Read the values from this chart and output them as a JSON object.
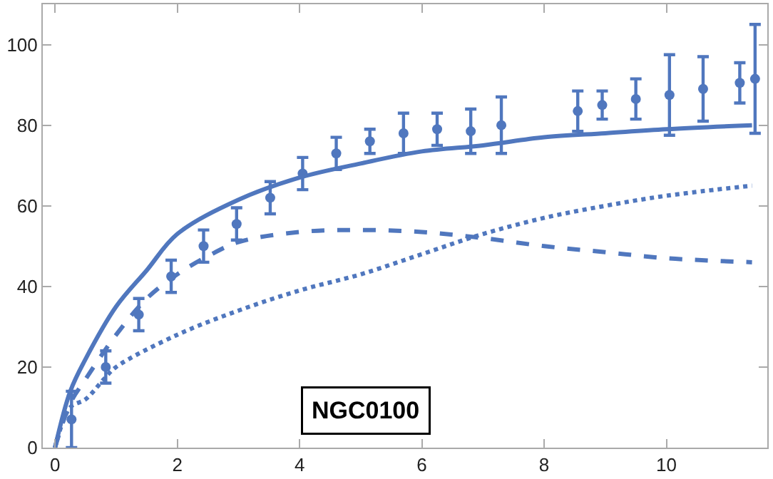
{
  "chart_data": {
    "type": "scatter",
    "annotations": [
      "NGC0100"
    ],
    "xlim": [
      -0.2,
      11.65
    ],
    "ylim": [
      0,
      110
    ],
    "xticks": [
      0,
      2,
      4,
      6,
      8,
      10
    ],
    "yticks": [
      0,
      20,
      40,
      60,
      80,
      100
    ],
    "series": [
      {
        "marker": "circle",
        "color": "#5077be",
        "x": [
          0.27,
          0.83,
          1.37,
          1.9,
          2.43,
          2.97,
          3.52,
          4.05,
          4.6,
          5.15,
          5.7,
          6.25,
          6.8,
          7.3,
          8.55,
          8.95,
          9.5,
          10.05,
          10.6,
          11.2,
          11.45
        ],
        "values": [
          7,
          20,
          33,
          42.5,
          50,
          55.5,
          62,
          68,
          73,
          76,
          78,
          79,
          78.5,
          80,
          83.5,
          85,
          86.5,
          87.5,
          89,
          90.5,
          91.5
        ],
        "errors": [
          7,
          4,
          4,
          4,
          4,
          4,
          4,
          4,
          4,
          3,
          5,
          4,
          5.5,
          7,
          5,
          3.5,
          5,
          10,
          8,
          5,
          13.5
        ]
      },
      {
        "type": "line",
        "line_style": "solid",
        "color": "#5077be",
        "x": [
          0,
          0.25,
          0.5,
          1,
          1.5,
          2,
          3,
          4,
          5,
          6,
          7,
          8,
          9,
          10,
          11.4
        ],
        "values": [
          0,
          14,
          22,
          35,
          44,
          53,
          61.5,
          67,
          70.5,
          73.5,
          75,
          77,
          78,
          79,
          80
        ]
      },
      {
        "type": "line",
        "line_style": "dashed",
        "color": "#5077be",
        "x": [
          0,
          0.25,
          0.5,
          1,
          1.5,
          2,
          2.5,
          3,
          4,
          5,
          6,
          7,
          8,
          9,
          10,
          11.4
        ],
        "values": [
          0,
          11,
          17,
          28,
          37,
          43,
          47.5,
          51,
          53.5,
          54,
          53.5,
          52,
          50,
          48.5,
          47,
          46
        ]
      },
      {
        "type": "line",
        "line_style": "dotted",
        "color": "#5077be",
        "x": [
          0,
          0.25,
          0.5,
          0.8,
          1,
          2,
          3,
          4,
          5,
          6,
          7,
          8,
          9,
          10,
          11.4
        ],
        "values": [
          0,
          10,
          12,
          17,
          20,
          28,
          34,
          39,
          43,
          48,
          53,
          57,
          60,
          62.5,
          65
        ]
      }
    ]
  }
}
